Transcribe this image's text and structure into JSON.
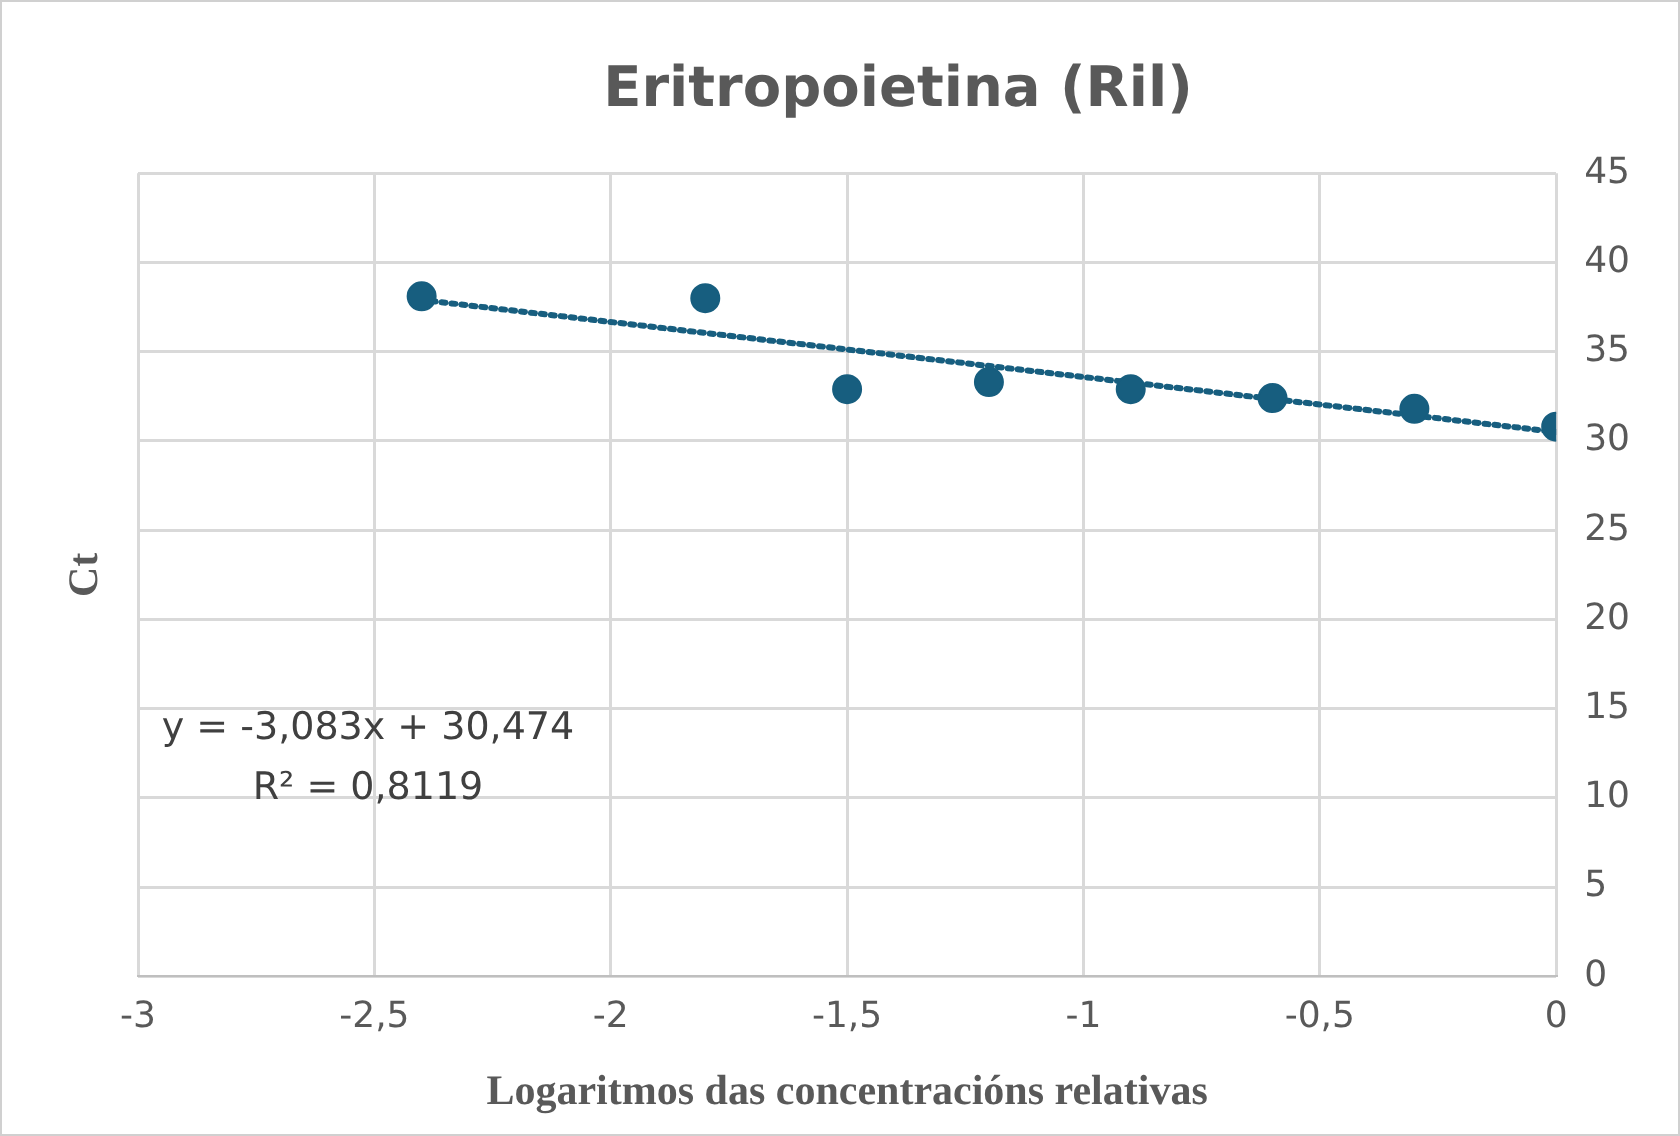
{
  "chart_data": {
    "type": "scatter",
    "title": "Eritropoietina (Ril)",
    "xlabel": "Logaritmos das concentracións relativas",
    "ylabel": "Ct",
    "series": [
      {
        "color": "#175e7f",
        "x": [
          -2.4,
          -1.8,
          -1.5,
          -1.2,
          -0.9,
          -0.6,
          -0.3,
          0
        ],
        "values": [
          38.1,
          38.0,
          32.9,
          33.3,
          32.9,
          32.4,
          31.8,
          30.8
        ],
        "marker": "circle"
      },
      {
        "type": "line",
        "color": "#175e7f",
        "x": [
          -2.4,
          0
        ],
        "values": [
          37.9,
          30.5
        ],
        "marker": "none",
        "line_style": "dotted"
      }
    ],
    "xlim": [
      -3,
      0
    ],
    "xticks": [
      -3,
      {
        "value": -2.5,
        "label": "-2,5"
      },
      -2,
      {
        "value": -1.5,
        "label": "-1,5"
      },
      -1,
      {
        "value": -0.5,
        "label": "-0,5"
      },
      0
    ],
    "ylim": [
      0,
      45
    ],
    "yticks": [
      0,
      5,
      10,
      15,
      20,
      25,
      30,
      35,
      40,
      45
    ],
    "grid": true,
    "legend": false,
    "annotations": [
      "y = -3,083x + 30,474",
      "R² = 0,8119"
    ]
  }
}
